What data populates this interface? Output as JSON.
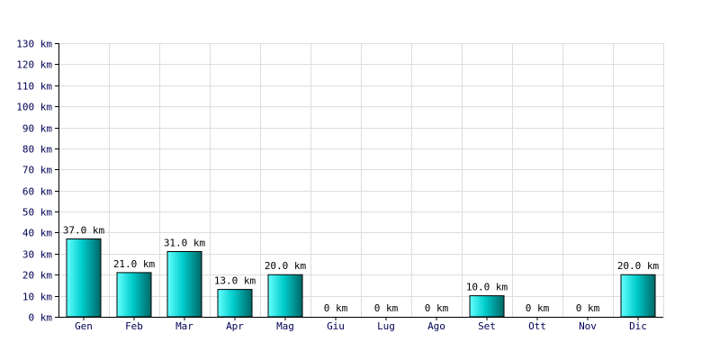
{
  "chart_data": {
    "type": "bar",
    "title": "",
    "xlabel": "",
    "ylabel": "",
    "categories": [
      "Gen",
      "Feb",
      "Mar",
      "Apr",
      "Mag",
      "Giu",
      "Lug",
      "Ago",
      "Set",
      "Ott",
      "Nov",
      "Dic"
    ],
    "values": [
      37.0,
      21.0,
      31.0,
      13.0,
      20.0,
      0,
      0,
      0,
      10.0,
      0,
      0,
      20.0
    ],
    "data_labels": [
      "37.0 km",
      "21.0 km",
      "31.0 km",
      "13.0 km",
      "20.0 km",
      "0 km",
      "0 km",
      "0 km",
      "10.0 km",
      "0 km",
      "0 km",
      "20.0 km"
    ],
    "ylim": [
      0,
      130
    ],
    "y_ticks": [
      0,
      10,
      20,
      30,
      40,
      50,
      60,
      70,
      80,
      90,
      100,
      110,
      120,
      130
    ],
    "y_tick_labels": [
      "0 km",
      "10 km",
      "20 km",
      "30 km",
      "40 km",
      "50 km",
      "60 km",
      "70 km",
      "80 km",
      "90 km",
      "100 km",
      "110 km",
      "120 km",
      "130 km"
    ],
    "grid": true,
    "legend": "none",
    "colors": {
      "bar_light": "#66ffff",
      "bar_mid": "#00cccc",
      "bar_dark": "#006666",
      "bar_outline": "#000000",
      "grid": "#dddddd",
      "axis": "#000000",
      "tick_text": "#000055"
    }
  }
}
